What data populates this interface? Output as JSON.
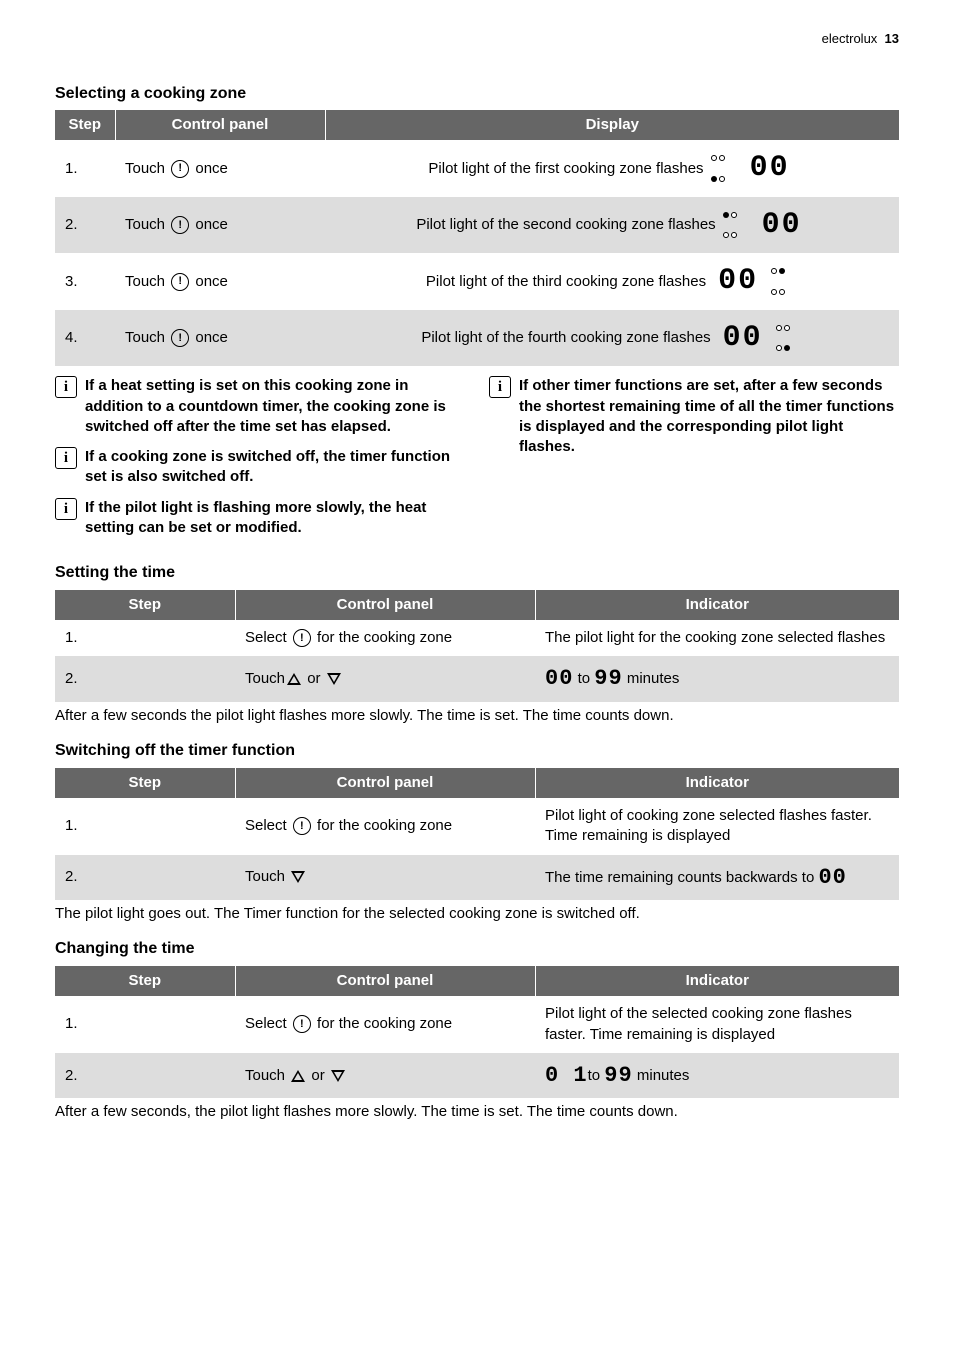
{
  "header": {
    "brand": "electrolux",
    "page_number": "13"
  },
  "colors": {
    "table_header_bg": "#666666",
    "table_header_fg": "#ffffff",
    "row_even_bg": "#dddddd",
    "row_odd_bg": "#ffffff",
    "text": "#000000"
  },
  "sections": {
    "selecting": {
      "title": "Selecting a cooking zone",
      "columns": {
        "step": "Step",
        "control_panel": "Control panel",
        "display": "Display"
      },
      "rows": [
        {
          "step": "1.",
          "control_prefix": "Touch ",
          "control_suffix": " once",
          "display_text": "Pilot light of the first cooking zone flashes",
          "digits": "00",
          "active_dot": 0,
          "dot_position": "left"
        },
        {
          "step": "2.",
          "control_prefix": "Touch ",
          "control_suffix": " once",
          "display_text": "Pilot light of the second cooking zone flashes",
          "digits": "00",
          "active_dot": 1,
          "dot_position": "left"
        },
        {
          "step": "3.",
          "control_prefix": "Touch ",
          "control_suffix": " once",
          "display_text": "Pilot light of the third cooking zone flashes",
          "digits": "00",
          "active_dot": 2,
          "dot_position": "right"
        },
        {
          "step": "4.",
          "control_prefix": "Touch ",
          "control_suffix": " once",
          "display_text": "Pilot light of the fourth cooking zone flashes",
          "digits": "00",
          "active_dot": 3,
          "dot_position": "right"
        }
      ]
    },
    "info_notes": {
      "left": [
        "If a heat setting is set on this cooking zone in addition to a countdown timer, the cooking zone is switched off after the time set has elapsed.",
        "If a cooking zone is switched off, the timer function set is also switched off.",
        "If the pilot light is flashing more slowly, the heat setting can be set or modified."
      ],
      "right": [
        "If other timer functions are set, after a few seconds the shortest remaining time of all the timer functions is displayed and the corresponding pilot light flashes."
      ]
    },
    "setting_time": {
      "title": "Setting the time",
      "columns": {
        "step": "Step",
        "control_panel": "Control panel",
        "indicator": "Indicator"
      },
      "rows": [
        {
          "step": "1.",
          "control_before": "Select ",
          "control_after": " for the cooking zone",
          "control_icons": [
            "clock"
          ],
          "indicator_parts": [
            {
              "t": "text",
              "v": "The pilot light for the cooking zone selected flashes"
            }
          ]
        },
        {
          "step": "2.",
          "control_before": "Touch",
          "control_after": "",
          "control_icons": [
            "up",
            "or",
            "down"
          ],
          "indicator_parts": [
            {
              "t": "seg",
              "v": "00"
            },
            {
              "t": "text",
              "v": " to "
            },
            {
              "t": "seg",
              "v": "99"
            },
            {
              "t": "text",
              "v": " minutes"
            }
          ]
        }
      ],
      "caption": "After a few seconds the pilot light flashes more slowly. The time is set. The time counts down."
    },
    "switch_off": {
      "title": "Switching off the timer function",
      "columns": {
        "step": "Step",
        "control_panel": "Control panel",
        "indicator": "Indicator"
      },
      "rows": [
        {
          "step": "1.",
          "control_before": "Select ",
          "control_after": " for the cooking zone",
          "control_icons": [
            "clock"
          ],
          "indicator_parts": [
            {
              "t": "text",
              "v": "Pilot light of cooking zone selected flashes faster. Time remaining is displayed"
            }
          ]
        },
        {
          "step": "2.",
          "control_before": "Touch ",
          "control_after": "",
          "control_icons": [
            "down"
          ],
          "indicator_parts": [
            {
              "t": "text",
              "v": "The time remaining counts backwards to "
            },
            {
              "t": "seg",
              "v": "00"
            }
          ]
        }
      ],
      "caption": "The pilot light goes out. The Timer function for the selected cooking zone is switched off."
    },
    "changing_time": {
      "title": "Changing the time",
      "columns": {
        "step": "Step",
        "control_panel": "Control panel",
        "indicator": "Indicator"
      },
      "rows": [
        {
          "step": "1.",
          "control_before": "Select ",
          "control_after": " for the cooking zone",
          "control_icons": [
            "clock"
          ],
          "indicator_parts": [
            {
              "t": "text",
              "v": "Pilot light of the selected cooking zone flashes faster. Time remaining is displayed"
            }
          ]
        },
        {
          "step": "2.",
          "control_before": "Touch ",
          "control_after": "",
          "control_icons": [
            "up",
            "or",
            "down"
          ],
          "indicator_parts": [
            {
              "t": "seg",
              "v": "0 1"
            },
            {
              "t": "text",
              "v": "to "
            },
            {
              "t": "seg",
              "v": "99"
            },
            {
              "t": "text",
              "v": " minutes"
            }
          ]
        }
      ],
      "caption": "After a few seconds, the pilot light flashes more slowly. The time is set. The time counts down."
    }
  }
}
